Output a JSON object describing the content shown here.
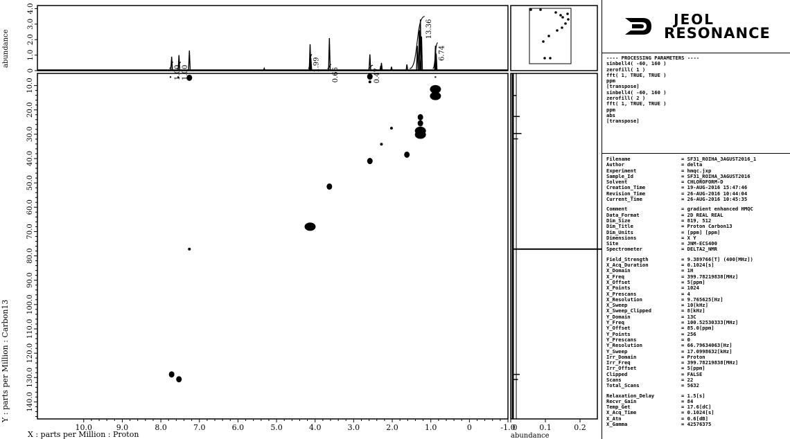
{
  "chart_data": {
    "type": "scatter",
    "subtype": "2D NMR HMQC contour",
    "xlabel": "X : parts per Million : Proton",
    "ylabel": "Y : parts per Million : Carbon13",
    "top_ylabel": "abundance",
    "right_xlabel": "abundance",
    "xlim": [
      11.2,
      -1.0
    ],
    "ylim": [
      5,
      147
    ],
    "x_ticks": [
      "10.0",
      "9.0",
      "8.0",
      "7.0",
      "6.0",
      "5.0",
      "4.0",
      "3.0",
      "2.0",
      "1.0",
      "0",
      "-1.0"
    ],
    "y_ticks": [
      "10.0",
      "20.0",
      "30.0",
      "40.0",
      "50.0",
      "60.0",
      "70.0",
      "80.0",
      "90.0",
      "100.0",
      "110.0",
      "120.0",
      "130.0",
      "140.0"
    ],
    "top_y_ticks": [
      "0",
      "1.0",
      "2.0",
      "3.0",
      "4.0"
    ],
    "right_x_ticks": [
      "0",
      "0.1",
      "0.2"
    ],
    "integrals": [
      "1.00",
      "1.00",
      "1.99",
      "0.66",
      "0.47",
      "13.36",
      "6.74"
    ],
    "cross_peaks": [
      {
        "x": 0.88,
        "y": 11.5,
        "size": "large"
      },
      {
        "x": 0.88,
        "y": 14.3,
        "size": "large"
      },
      {
        "x": 1.27,
        "y": 23.0,
        "size": "medium"
      },
      {
        "x": 1.27,
        "y": 25.5,
        "size": "medium"
      },
      {
        "x": 1.27,
        "y": 28.6,
        "size": "large"
      },
      {
        "x": 1.27,
        "y": 30.2,
        "size": "large"
      },
      {
        "x": 2.02,
        "y": 27.5,
        "size": "small"
      },
      {
        "x": 2.28,
        "y": 34.1,
        "size": "small"
      },
      {
        "x": 1.62,
        "y": 38.4,
        "size": "medium"
      },
      {
        "x": 2.58,
        "y": 41.0,
        "size": "medium"
      },
      {
        "x": 3.63,
        "y": 51.5,
        "size": "medium"
      },
      {
        "x": 4.13,
        "y": 68.0,
        "size": "large"
      },
      {
        "x": 7.26,
        "y": 77.2,
        "size": "small"
      },
      {
        "x": 7.72,
        "y": 128.7,
        "size": "medium"
      },
      {
        "x": 7.53,
        "y": 130.7,
        "size": "medium"
      },
      {
        "x": 7.26,
        "y": 6.8,
        "size": "medium"
      },
      {
        "x": 2.58,
        "y": 6.3,
        "size": "medium"
      },
      {
        "x": 2.58,
        "y": 8.5,
        "size": "small"
      },
      {
        "x": 7.75,
        "y": 6.5,
        "size": "tiny"
      },
      {
        "x": 7.55,
        "y": 6.5,
        "size": "tiny"
      },
      {
        "x": 0.88,
        "y": 6.5,
        "size": "tiny"
      }
    ],
    "proton_peaks": [
      {
        "x": 7.72,
        "h": 0.9
      },
      {
        "x": 7.53,
        "h": 1.0
      },
      {
        "x": 7.26,
        "h": 1.3
      },
      {
        "x": 5.32,
        "h": 0.15
      },
      {
        "x": 4.13,
        "h": 1.7
      },
      {
        "x": 4.11,
        "h": 0.8
      },
      {
        "x": 3.63,
        "h": 2.1
      },
      {
        "x": 2.58,
        "h": 1.05
      },
      {
        "x": 2.3,
        "h": 0.3
      },
      {
        "x": 2.28,
        "h": 0.5
      },
      {
        "x": 2.02,
        "h": 0.25
      },
      {
        "x": 1.62,
        "h": 0.4
      },
      {
        "x": 1.35,
        "h": 1.6
      },
      {
        "x": 1.3,
        "h": 2.6
      },
      {
        "x": 1.27,
        "h": 3.3
      },
      {
        "x": 1.24,
        "h": 2.2
      },
      {
        "x": 0.88,
        "h": 1.6
      },
      {
        "x": 0.86,
        "h": 1.1
      }
    ],
    "carbon_projection_peaks": [
      {
        "y": 14.1,
        "w": 0.01
      },
      {
        "y": 22.7,
        "w": 0.02
      },
      {
        "y": 29.7,
        "w": 0.025
      },
      {
        "y": 31.9,
        "w": 0.015
      },
      {
        "y": 77.2,
        "w": 0.27
      },
      {
        "y": 128.7,
        "w": 0.02
      },
      {
        "y": 130.8,
        "w": 0.015
      }
    ]
  },
  "processing": {
    "lines": [
      "---- PROCESSING PARAMETERS ----",
      "sinbell4( -60, 160 )",
      "zerofill( 1 )",
      "fft( 1, TRUE, TRUE )",
      "ppm",
      "[transpose]",
      "sinbell4( -60, 160 )",
      "zerofill( 2 )",
      "fft( 1, TRUE, TRUE )",
      "ppm",
      "abs",
      "[transpose]"
    ]
  },
  "metadata": {
    "groups": [
      [
        {
          "k": "Filename",
          "v": "= SF31_ROIHA_3AGUST2016_1"
        },
        {
          "k": "Author",
          "v": "= delta"
        },
        {
          "k": "Experiment",
          "v": "= hmqc.jxp"
        },
        {
          "k": "Sample_Id",
          "v": "= SF31_ROIHA_3AGUST2016"
        },
        {
          "k": "Solvent",
          "v": "= CHLOROFORM-D"
        },
        {
          "k": "Creation_Time",
          "v": "= 19-AUG-2016 15:47:46"
        },
        {
          "k": "Revision_Time",
          "v": "= 26-AUG-2016 10:44:04"
        },
        {
          "k": "Current_Time",
          "v": "= 26-AUG-2016 10:45:35"
        }
      ],
      [
        {
          "k": "Comment",
          "v": "= gradient enhanced HMQC"
        },
        {
          "k": "Data_Format",
          "v": "= 2D REAL REAL"
        },
        {
          "k": "Dim_Size",
          "v": "= 819, 512"
        },
        {
          "k": "Dim_Title",
          "v": "= Proton Carbon13"
        },
        {
          "k": "Dim_Units",
          "v": "= [ppm] [ppm]"
        },
        {
          "k": "Dimensions",
          "v": "= X Y"
        },
        {
          "k": "Site",
          "v": "= JNM-ECS400"
        },
        {
          "k": "Spectrometer",
          "v": "= DELTA2_NMR"
        }
      ],
      [
        {
          "k": "Field_Strength",
          "v": "= 9.389766[T] (400[MHz])"
        },
        {
          "k": "X_Acq_Duration",
          "v": "= 0.1024[s]"
        },
        {
          "k": "X_Domain",
          "v": "= 1H"
        },
        {
          "k": "X_Freq",
          "v": "= 399.78219838[MHz]"
        },
        {
          "k": "X_Offset",
          "v": "= 5[ppm]"
        },
        {
          "k": "X_Points",
          "v": "= 1024"
        },
        {
          "k": "X_Prescans",
          "v": "= 4"
        },
        {
          "k": "X_Resolution",
          "v": "= 9.765625[Hz]"
        },
        {
          "k": "X_Sweep",
          "v": "= 10[kHz]"
        },
        {
          "k": "X_Sweep_Clipped",
          "v": "= 8[kHz]"
        },
        {
          "k": "Y_Domain",
          "v": "= 13C"
        },
        {
          "k": "Y_Freq",
          "v": "= 100.52530333[MHz]"
        },
        {
          "k": "Y_Offset",
          "v": "= 85.0[ppm]"
        },
        {
          "k": "Y_Points",
          "v": "= 256"
        },
        {
          "k": "Y_Prescans",
          "v": "= 0"
        },
        {
          "k": "Y_Resolution",
          "v": "= 66.79634063[Hz]"
        },
        {
          "k": "Y_Sweep",
          "v": "= 17.0998632[kHz]"
        },
        {
          "k": "Irr_Domain",
          "v": "= Proton"
        },
        {
          "k": "Irr_Freq",
          "v": "= 399.78219838[MHz]"
        },
        {
          "k": "Irr_Offset",
          "v": "= 5[ppm]"
        },
        {
          "k": "Clipped",
          "v": "= FALSE"
        },
        {
          "k": "Scans",
          "v": "= 22"
        },
        {
          "k": "Total_Scans",
          "v": "= 5632"
        }
      ],
      [
        {
          "k": "Relaxation_Delay",
          "v": "= 1.5[s]"
        },
        {
          "k": "Recvr_Gain",
          "v": "= 84"
        },
        {
          "k": "Temp_Get",
          "v": "= 17.6[dC]"
        },
        {
          "k": "X_Acq_Time",
          "v": "= 0.1024[s]"
        },
        {
          "k": "X_Atn",
          "v": "= 0.6[dB]"
        },
        {
          "k": "X_Gamma",
          "v": "= 42576375"
        }
      ]
    ]
  },
  "logo": {
    "line1": "JEOL",
    "line2": "RESONANCE",
    "icon": "jeol-logo-icon"
  }
}
